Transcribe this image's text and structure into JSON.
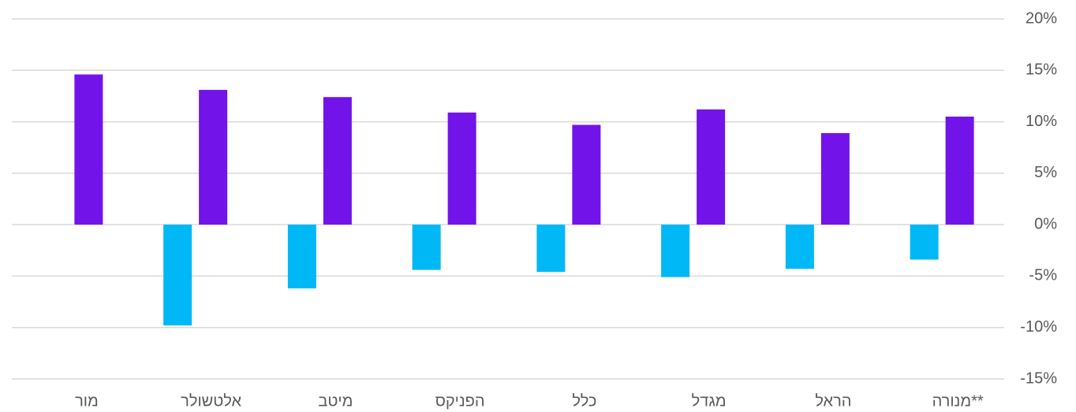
{
  "chart_data": {
    "type": "bar",
    "categories": [
      "מור",
      "אלטשולר",
      "מיטב",
      "הפניקס",
      "כלל",
      "מגדל",
      "הראל",
      "מנורה**"
    ],
    "series": [
      {
        "color": "#00b8f5",
        "values": [
          null,
          -9.8,
          -6.2,
          -4.4,
          -4.6,
          -5.1,
          -4.3,
          -3.4
        ]
      },
      {
        "color": "#7213ea",
        "values": [
          14.6,
          13.1,
          12.4,
          10.9,
          9.7,
          11.2,
          8.9,
          10.5
        ]
      }
    ],
    "ylim": [
      -15,
      20
    ],
    "yticks": [
      {
        "value": -15,
        "label": "-15%"
      },
      {
        "value": -10,
        "label": "-10%"
      },
      {
        "value": -5,
        "label": "-5%"
      },
      {
        "value": 0,
        "label": "0%"
      },
      {
        "value": 5,
        "label": "5%"
      },
      {
        "value": 10,
        "label": "10%"
      },
      {
        "value": 15,
        "label": "15%"
      },
      {
        "value": 20,
        "label": "20%"
      }
    ],
    "grid": true
  }
}
